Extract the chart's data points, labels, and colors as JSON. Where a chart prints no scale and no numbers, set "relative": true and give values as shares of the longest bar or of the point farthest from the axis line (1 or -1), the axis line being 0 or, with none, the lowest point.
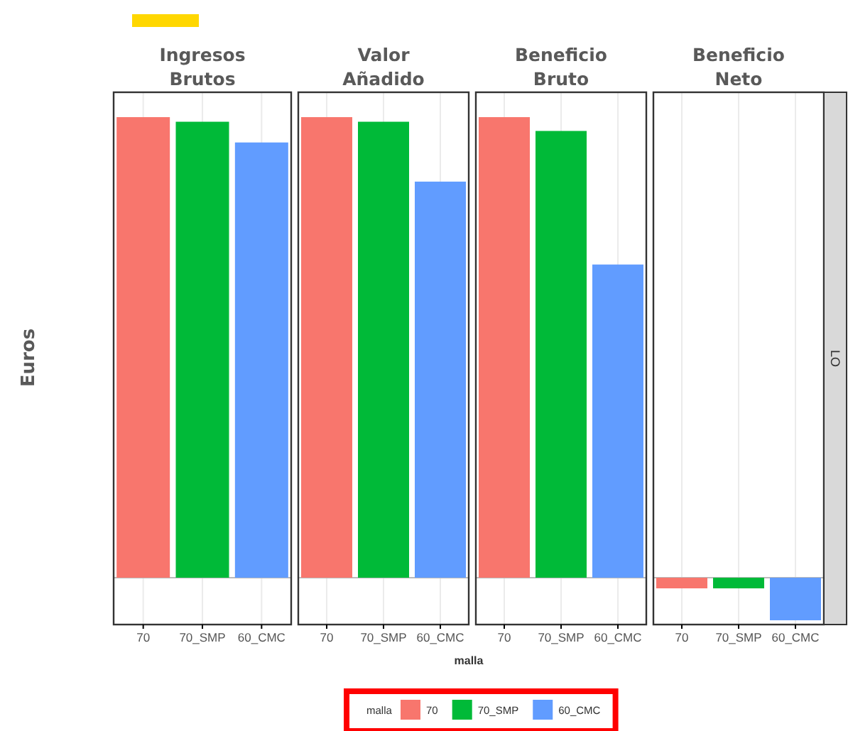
{
  "chart_data": [
    {
      "type": "bar",
      "title": "Ingresos Brutos",
      "ylabel": "Euros",
      "categories": [
        "70",
        "70_SMP",
        "60_CMC"
      ],
      "relative": true,
      "grid": "x",
      "legend": "bottom",
      "legend_title": "malla",
      "series": [
        {
          "name": "70",
          "color": "#f8766d",
          "values": [
            1,
            null,
            null
          ]
        },
        {
          "name": "70_SMP",
          "color": "#00ba38",
          "values": [
            null,
            0.99,
            null
          ]
        },
        {
          "name": "60_CMC",
          "color": "#619cff",
          "values": [
            null,
            null,
            0.945
          ]
        }
      ]
    },
    {
      "type": "bar",
      "title": "Valor Añadido",
      "xlabel": "malla",
      "categories": [
        "70",
        "70_SMP",
        "60_CMC"
      ],
      "relative": true,
      "grid": "x",
      "series": [
        {
          "color": "#f8766d",
          "values": [
            1,
            null,
            null
          ]
        },
        {
          "color": "#00ba38",
          "values": [
            null,
            0.99,
            null
          ]
        },
        {
          "color": "#619cff",
          "values": [
            null,
            null,
            0.86
          ]
        }
      ]
    },
    {
      "type": "bar",
      "title": "Beneficio Bruto",
      "categories": [
        "70",
        "70_SMP",
        "60_CMC"
      ],
      "relative": true,
      "grid": "x",
      "series": [
        {
          "color": "#f8766d",
          "values": [
            1,
            null,
            null
          ]
        },
        {
          "color": "#00ba38",
          "values": [
            null,
            0.97,
            null
          ]
        },
        {
          "color": "#619cff",
          "values": [
            null,
            null,
            0.68
          ]
        }
      ]
    },
    {
      "type": "bar",
      "title": "Beneficio Neto",
      "categories": [
        "70",
        "70_SMP",
        "60_CMC"
      ],
      "relative": true,
      "grid": "x",
      "annotations": [
        "LO"
      ],
      "series": [
        {
          "color": "#f8766d",
          "values": [
            -0.25,
            null,
            null
          ]
        },
        {
          "color": "#00ba38",
          "values": [
            null,
            -0.25,
            null
          ]
        },
        {
          "color": "#619cff",
          "values": [
            null,
            null,
            -1
          ]
        }
      ]
    }
  ]
}
